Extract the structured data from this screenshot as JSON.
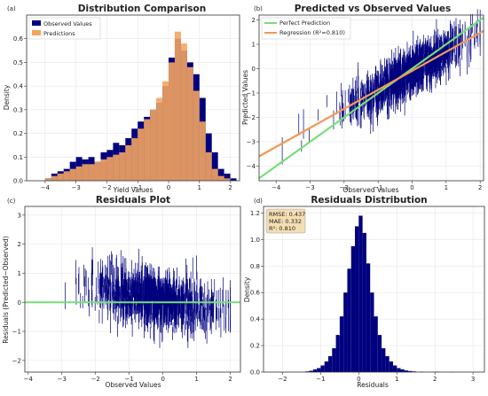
{
  "colors": {
    "observed": "#00007f",
    "predictions": "#f4a460",
    "perfect": "#77dd77",
    "regression": "#f19a55",
    "residual_line": "#77dd77",
    "statsbox_bg": "#f5deb3"
  },
  "chart_data": [
    {
      "panel_label": "(a)",
      "type": "histogram",
      "title": "Distribution Comparison",
      "xlabel": "Yield Values",
      "ylabel": "Density",
      "xlim": [
        -4.6,
        2.3
      ],
      "ylim": [
        0,
        0.7
      ],
      "xticks": [
        -4,
        -3,
        -2,
        -1,
        0,
        1,
        2
      ],
      "yticks": [
        0.0,
        0.1,
        0.2,
        0.3,
        0.4,
        0.5,
        0.6
      ],
      "legend": {
        "placement": "top-left",
        "entries": [
          "Observed Values",
          "Predictions"
        ]
      },
      "series": [
        {
          "name": "Observed Values",
          "bins": [
            [
              -4.0,
              0.01
            ],
            [
              -3.8,
              0.03
            ],
            [
              -3.6,
              0.04
            ],
            [
              -3.4,
              0.05
            ],
            [
              -3.2,
              0.08
            ],
            [
              -3.0,
              0.1
            ],
            [
              -2.8,
              0.09
            ],
            [
              -2.6,
              0.1
            ],
            [
              -2.4,
              0.08
            ],
            [
              -2.2,
              0.12
            ],
            [
              -2.0,
              0.13
            ],
            [
              -1.8,
              0.16
            ],
            [
              -1.6,
              0.15
            ],
            [
              -1.4,
              0.18
            ],
            [
              -1.2,
              0.22
            ],
            [
              -1.0,
              0.25
            ],
            [
              -0.8,
              0.27
            ],
            [
              -0.6,
              0.3
            ],
            [
              -0.4,
              0.33
            ],
            [
              -0.2,
              0.4
            ],
            [
              0.0,
              0.52
            ],
            [
              0.2,
              0.6
            ],
            [
              0.4,
              0.55
            ],
            [
              0.6,
              0.5
            ],
            [
              0.8,
              0.45
            ],
            [
              1.0,
              0.35
            ],
            [
              1.2,
              0.2
            ],
            [
              1.4,
              0.12
            ],
            [
              1.6,
              0.05
            ],
            [
              1.8,
              0.03
            ],
            [
              2.0,
              0.01
            ]
          ]
        },
        {
          "name": "Predictions",
          "bins": [
            [
              -4.0,
              0.01
            ],
            [
              -3.8,
              0.02
            ],
            [
              -3.6,
              0.03
            ],
            [
              -3.4,
              0.04
            ],
            [
              -3.2,
              0.05
            ],
            [
              -3.0,
              0.06
            ],
            [
              -2.8,
              0.07
            ],
            [
              -2.6,
              0.07
            ],
            [
              -2.4,
              0.08
            ],
            [
              -2.2,
              0.09
            ],
            [
              -2.0,
              0.1
            ],
            [
              -1.8,
              0.11
            ],
            [
              -1.6,
              0.12
            ],
            [
              -1.4,
              0.15
            ],
            [
              -1.2,
              0.18
            ],
            [
              -1.0,
              0.22
            ],
            [
              -0.8,
              0.26
            ],
            [
              -0.6,
              0.3
            ],
            [
              -0.4,
              0.35
            ],
            [
              -0.2,
              0.42
            ],
            [
              0.0,
              0.5
            ],
            [
              0.2,
              0.63
            ],
            [
              0.4,
              0.58
            ],
            [
              0.6,
              0.48
            ],
            [
              0.8,
              0.38
            ],
            [
              1.0,
              0.25
            ],
            [
              1.2,
              0.12
            ],
            [
              1.4,
              0.05
            ],
            [
              1.6,
              0.02
            ],
            [
              1.8,
              0.01
            ],
            [
              2.0,
              0.0
            ]
          ]
        }
      ]
    },
    {
      "panel_label": "(b)",
      "type": "scatter",
      "title": "Predicted vs Observed Values",
      "xlabel": "Observed Values",
      "ylabel": "Predicted Values",
      "xlim": [
        -4.5,
        2.1
      ],
      "ylim": [
        -4.6,
        2.2
      ],
      "xticks": [
        -4,
        -3,
        -2,
        -1,
        0,
        1,
        2
      ],
      "yticks": [
        -4,
        -3,
        -2,
        -1,
        0,
        1,
        2
      ],
      "legend": {
        "placement": "top-left",
        "entries": [
          "Perfect Prediction",
          "Regression (R²=0.810)"
        ]
      },
      "lines": [
        {
          "name": "Perfect Prediction",
          "x": [
            -4.5,
            2.1
          ],
          "y": [
            -4.5,
            2.1
          ]
        },
        {
          "name": "Regression (R²=0.810)",
          "x": [
            -4.5,
            2.1
          ],
          "y": [
            -3.6,
            1.55
          ]
        }
      ]
    },
    {
      "panel_label": "(c)",
      "type": "scatter",
      "title": "Residuals Plot",
      "xlabel": "Observed Values",
      "ylabel": "Residuals (Predicted−Observed)",
      "xlim": [
        -4.1,
        2.3
      ],
      "ylim": [
        -2.4,
        3.3
      ],
      "xticks": [
        -4,
        -3,
        -2,
        -1,
        0,
        1,
        2
      ],
      "yticks": [
        -2,
        -1,
        0,
        1,
        2,
        3
      ],
      "reference_line_y": 0
    },
    {
      "panel_label": "(d)",
      "type": "histogram",
      "title": "Residuals Distribution",
      "xlabel": "Residuals",
      "ylabel": "Density",
      "xlim": [
        -2.5,
        3.3
      ],
      "ylim": [
        0,
        1.25
      ],
      "xticks": [
        -2,
        -1,
        0,
        1,
        2,
        3
      ],
      "yticks": [
        0.0,
        0.2,
        0.4,
        0.6,
        0.8,
        1.0,
        1.2
      ],
      "stats": [
        "RMSE: 0.437",
        "MAE: 0.332",
        "R²: 0.810"
      ],
      "bins": [
        [
          -1.4,
          0.005
        ],
        [
          -1.3,
          0.01
        ],
        [
          -1.2,
          0.02
        ],
        [
          -1.1,
          0.03
        ],
        [
          -1.0,
          0.05
        ],
        [
          -0.9,
          0.08
        ],
        [
          -0.8,
          0.12
        ],
        [
          -0.7,
          0.18
        ],
        [
          -0.6,
          0.28
        ],
        [
          -0.5,
          0.42
        ],
        [
          -0.4,
          0.6
        ],
        [
          -0.3,
          0.78
        ],
        [
          -0.2,
          0.95
        ],
        [
          -0.1,
          1.1
        ],
        [
          0.0,
          1.18
        ],
        [
          0.1,
          1.05
        ],
        [
          0.2,
          0.82
        ],
        [
          0.3,
          0.6
        ],
        [
          0.4,
          0.42
        ],
        [
          0.5,
          0.28
        ],
        [
          0.6,
          0.18
        ],
        [
          0.7,
          0.12
        ],
        [
          0.8,
          0.08
        ],
        [
          0.9,
          0.05
        ],
        [
          1.0,
          0.03
        ],
        [
          1.1,
          0.02
        ],
        [
          1.2,
          0.012
        ],
        [
          1.3,
          0.008
        ],
        [
          1.4,
          0.005
        ],
        [
          1.6,
          0.003
        ],
        [
          2.0,
          0.003
        ],
        [
          2.4,
          0.002
        ]
      ]
    }
  ]
}
